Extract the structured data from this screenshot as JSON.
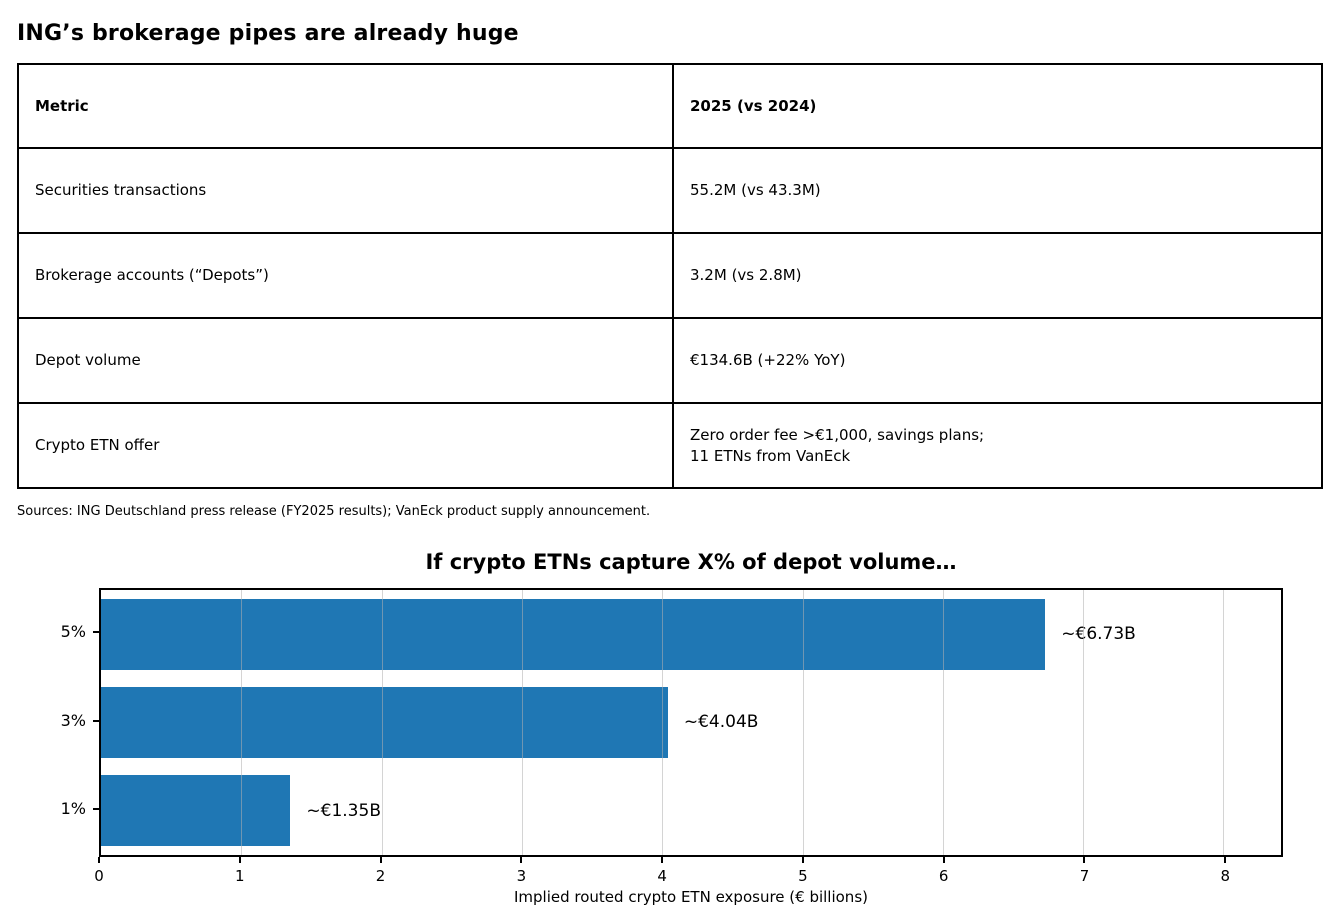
{
  "figure": {
    "title": "ING’s brokerage pipes are already huge",
    "source_note": "Sources: ING Deutschland press release (FY2025 results); VanEck product supply announcement."
  },
  "chart_data": [
    {
      "type": "table",
      "columns": [
        "Metric",
        "2025 (vs 2024)"
      ],
      "rows": [
        [
          "Securities transactions",
          "55.2M (vs 43.3M)"
        ],
        [
          "Brokerage accounts (“Depots”)",
          "3.2M (vs 2.8M)"
        ],
        [
          "Depot volume",
          "€134.6B (+22% YoY)"
        ],
        [
          "Crypto ETN offer",
          "Zero order fee >€1,000, savings plans;\n11 ETNs from VanEck"
        ]
      ]
    },
    {
      "type": "bar",
      "orientation": "horizontal",
      "title": "If crypto ETNs capture X% of depot volume…",
      "categories": [
        "5%",
        "3%",
        "1%"
      ],
      "values": [
        6.73,
        4.04,
        1.35
      ],
      "bar_labels": [
        "~€6.73B",
        "~€4.04B",
        "~€1.35B"
      ],
      "xlabel": "Implied routed crypto ETN exposure (€ billions)",
      "xlim": [
        0,
        8.41
      ],
      "xticks": [
        0,
        1,
        2,
        3,
        4,
        5,
        6,
        7,
        8
      ],
      "grid": true,
      "legend": false,
      "bar_color": "#1f77b4"
    }
  ]
}
